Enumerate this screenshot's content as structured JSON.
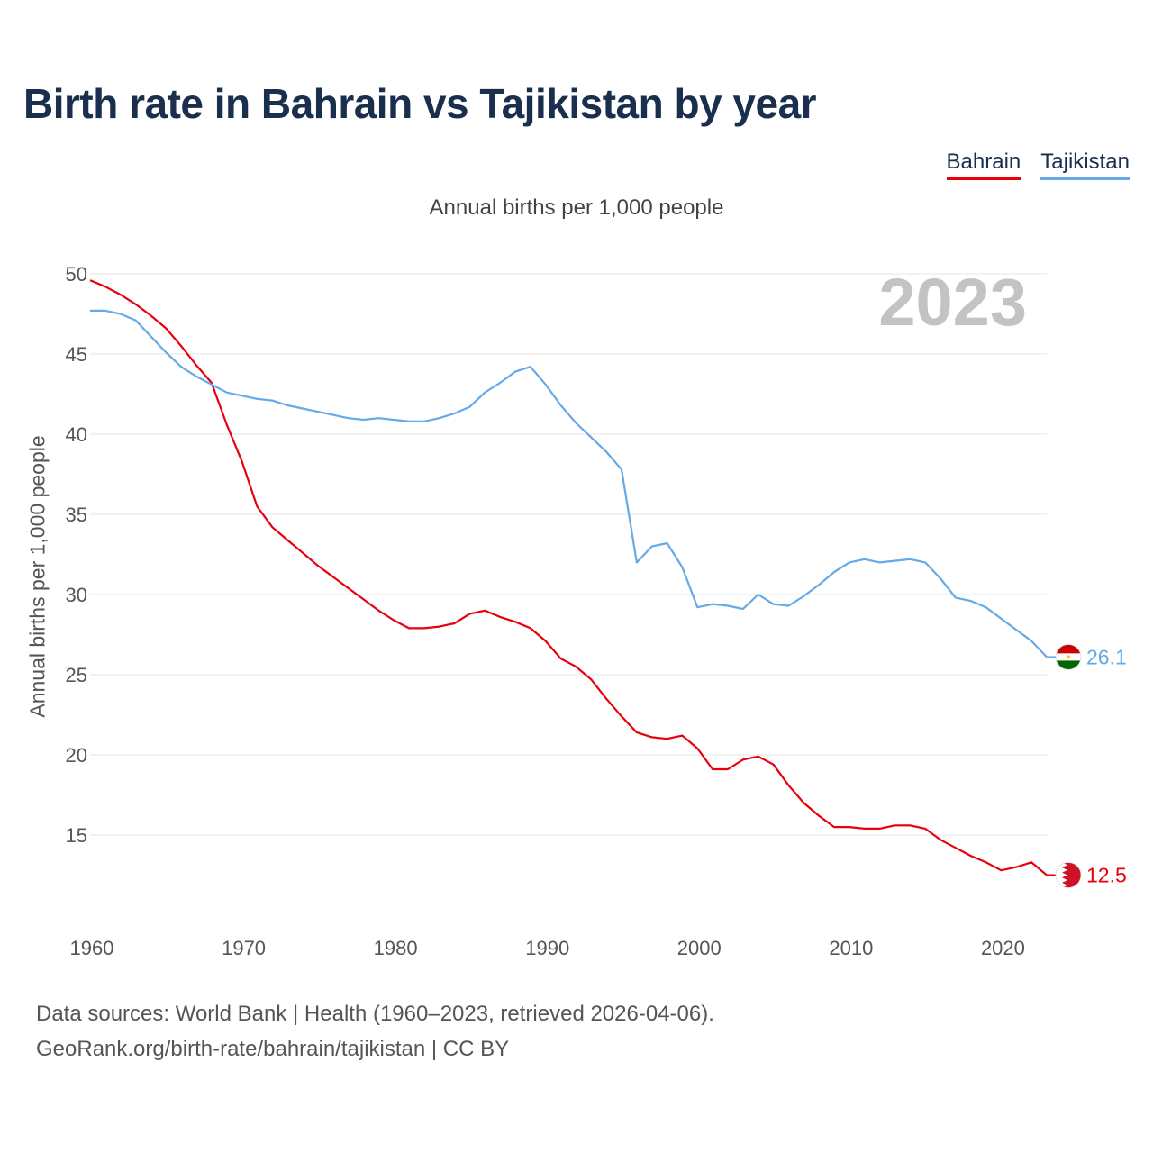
{
  "title": "Birth rate in Bahrain vs Tajikistan by year",
  "legend": [
    {
      "name": "Bahrain",
      "color": "#e8000b"
    },
    {
      "name": "Tajikistan",
      "color": "#64a9e8"
    }
  ],
  "footer": {
    "line1": "Data sources: World Bank | Health (1960–2023, retrieved 2026-04-06).",
    "line2": "GeoRank.org/birth-rate/bahrain/tajikistan | CC BY"
  },
  "chart_data": {
    "type": "line",
    "subtitle": "Annual births per 1,000 people",
    "ylabel": "Annual births per 1,000 people",
    "xlabel": "",
    "current_year": "2023",
    "xlim": [
      1960,
      2023
    ],
    "ylim": [
      10,
      50
    ],
    "x_ticks": [
      1960,
      1970,
      1980,
      1990,
      2000,
      2010,
      2020
    ],
    "y_ticks": [
      15,
      20,
      25,
      30,
      35,
      40,
      45,
      50
    ],
    "grid": true,
    "legend_position": "top-right",
    "x": [
      1960,
      1961,
      1962,
      1963,
      1964,
      1965,
      1966,
      1967,
      1968,
      1969,
      1970,
      1971,
      1972,
      1973,
      1974,
      1975,
      1976,
      1977,
      1978,
      1979,
      1980,
      1981,
      1982,
      1983,
      1984,
      1985,
      1986,
      1987,
      1988,
      1989,
      1990,
      1991,
      1992,
      1993,
      1994,
      1995,
      1996,
      1997,
      1998,
      1999,
      2000,
      2001,
      2002,
      2003,
      2004,
      2005,
      2006,
      2007,
      2008,
      2009,
      2010,
      2011,
      2012,
      2013,
      2014,
      2015,
      2016,
      2017,
      2018,
      2019,
      2020,
      2021,
      2022,
      2023
    ],
    "series": [
      {
        "name": "Bahrain",
        "color": "#e8000b",
        "end_label": "12.5",
        "values": [
          49.6,
          49.2,
          48.7,
          48.1,
          47.4,
          46.6,
          45.5,
          44.3,
          43.2,
          40.6,
          38.3,
          35.5,
          34.2,
          33.4,
          32.6,
          31.8,
          31.1,
          30.4,
          29.7,
          29.0,
          28.4,
          27.9,
          27.9,
          28.0,
          28.2,
          28.8,
          29.0,
          28.6,
          28.3,
          27.9,
          27.1,
          26.0,
          25.5,
          24.7,
          23.5,
          22.4,
          21.4,
          21.1,
          21.0,
          21.2,
          20.4,
          19.1,
          19.1,
          19.7,
          19.9,
          19.4,
          18.1,
          17.0,
          16.2,
          15.5,
          15.5,
          15.4,
          15.4,
          15.6,
          15.6,
          15.4,
          14.7,
          14.2,
          13.7,
          13.3,
          12.8,
          13.0,
          13.3,
          12.5
        ]
      },
      {
        "name": "Tajikistan",
        "color": "#64a9e8",
        "end_label": "26.1",
        "values": [
          47.7,
          47.7,
          47.5,
          47.1,
          46.1,
          45.1,
          44.2,
          43.6,
          43.1,
          42.6,
          42.4,
          42.2,
          42.1,
          41.8,
          41.6,
          41.4,
          41.2,
          41.0,
          40.9,
          41.0,
          40.9,
          40.8,
          40.8,
          41.0,
          41.3,
          41.7,
          42.6,
          43.2,
          43.9,
          44.2,
          43.1,
          41.8,
          40.7,
          39.8,
          38.9,
          37.8,
          32.0,
          33.0,
          33.2,
          31.7,
          29.2,
          29.4,
          29.3,
          29.1,
          30.0,
          29.4,
          29.3,
          29.9,
          30.6,
          31.4,
          32.0,
          32.2,
          32.0,
          32.1,
          32.2,
          32.0,
          31.0,
          29.8,
          29.6,
          29.2,
          28.5,
          27.8,
          27.1,
          26.1
        ]
      }
    ]
  }
}
